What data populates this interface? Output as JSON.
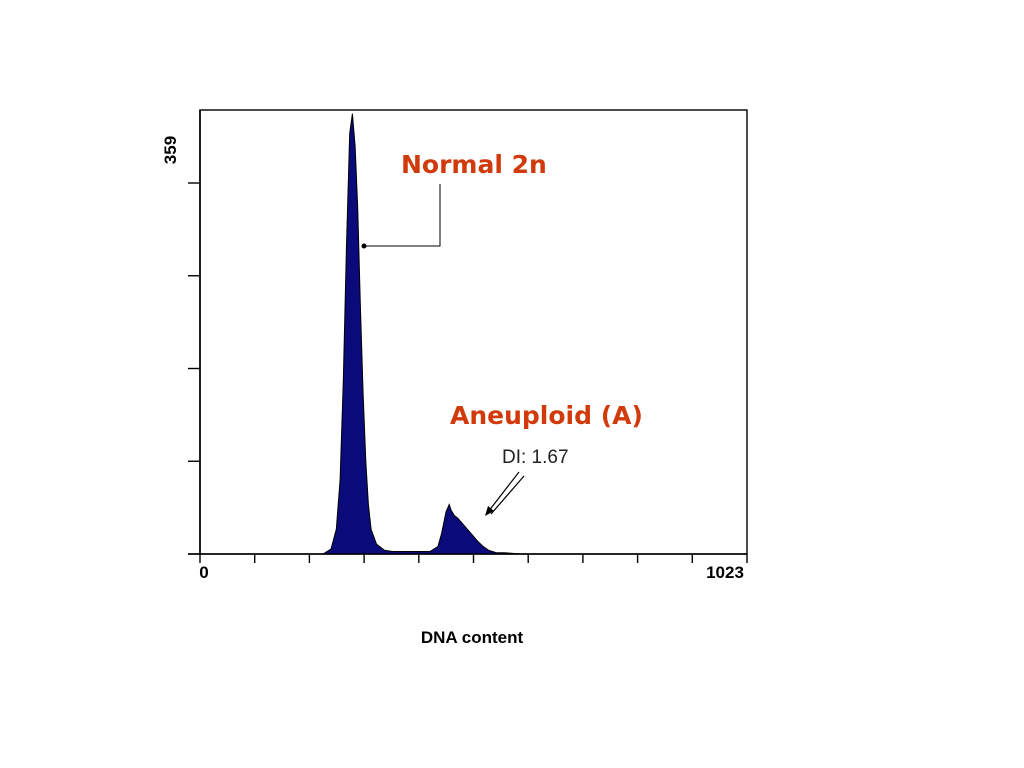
{
  "chart_data": {
    "type": "area",
    "title": "",
    "xlabel": "DNA content",
    "ylabel": "",
    "xlim": [
      0,
      1023
    ],
    "ylim": [
      0,
      359
    ],
    "x_tick_labels": [
      "0",
      "1023"
    ],
    "y_tick_labels": [
      "359"
    ],
    "x_minor_ticks": 10,
    "y_minor_ticks": 4,
    "grid": false,
    "series": [
      {
        "color": "#0a0a7a",
        "x": [
          0,
          230,
          245,
          255,
          262,
          268,
          274,
          280,
          285,
          290,
          295,
          300,
          305,
          310,
          315,
          320,
          330,
          345,
          360,
          380,
          400,
          430,
          445,
          452,
          460,
          466,
          470,
          476,
          482,
          490,
          500,
          510,
          520,
          530,
          540,
          555,
          570,
          600,
          1023
        ],
        "values": [
          0,
          0,
          4,
          20,
          60,
          140,
          250,
          340,
          356,
          330,
          280,
          200,
          130,
          75,
          40,
          20,
          8,
          3,
          2,
          2,
          2,
          2,
          6,
          17,
          34,
          40,
          35,
          31,
          29,
          25,
          20,
          15,
          10,
          6,
          3,
          1,
          1,
          0,
          0
        ]
      }
    ],
    "annotations": [
      {
        "text": "Normal 2n",
        "color": "#d13a0a"
      },
      {
        "text": "Aneuploid (A)",
        "color": "#d13a0a"
      },
      {
        "text": "DI: 1.67",
        "color": "#222222"
      }
    ]
  }
}
